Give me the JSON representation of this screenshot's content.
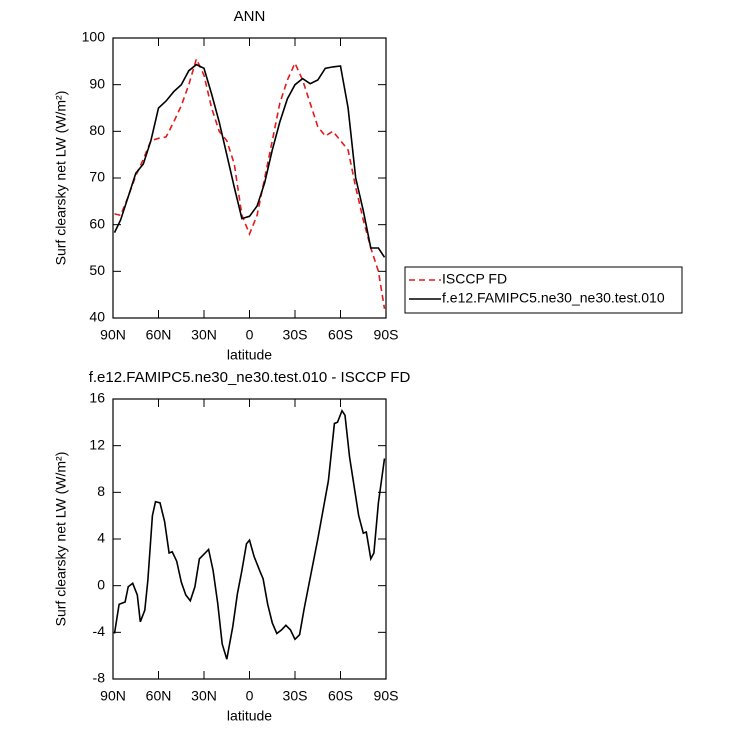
{
  "chart_data": [
    {
      "type": "line",
      "title": "ANN",
      "x_label": "latitude",
      "y_label": "Surf clearsky net LW (W/m²)",
      "x": [
        89,
        85,
        80,
        75,
        70,
        65,
        60,
        55,
        50,
        45,
        40,
        35,
        30,
        25,
        20,
        15,
        10,
        5,
        0,
        -5,
        -10,
        -15,
        -20,
        -25,
        -30,
        -35,
        -40,
        -45,
        -50,
        -55,
        -60,
        -65,
        -70,
        -75,
        -80,
        -85,
        -89
      ],
      "series": [
        {
          "name": "ISCCP FD",
          "color": "#e31a1c",
          "dash": true,
          "values": [
            62.3,
            62,
            66,
            70.5,
            74,
            78,
            78.5,
            78.8,
            82,
            85.5,
            90,
            95.5,
            92,
            85,
            80,
            78,
            73,
            62,
            58,
            62,
            70,
            78,
            86,
            91,
            94.6,
            91,
            86,
            81,
            79,
            80,
            78,
            76,
            68,
            61,
            55,
            50,
            42
          ]
        },
        {
          "name": "f.e12.FAMIPC5.ne30_ne30.test.010",
          "color": "#000000",
          "dash": false,
          "values": [
            58.3,
            61,
            66,
            71,
            73,
            78,
            85,
            86.5,
            88.5,
            90,
            93,
            94.3,
            93.5,
            88,
            82,
            75,
            68,
            61.3,
            61.8,
            64,
            69,
            76,
            82,
            87,
            90,
            91.3,
            90.2,
            91,
            93.5,
            93.8,
            94,
            85,
            70,
            63,
            55,
            55,
            53
          ]
        }
      ],
      "xlim": [
        90,
        -90
      ],
      "xticks": [
        {
          "value": 90,
          "label": "90N"
        },
        {
          "value": 60,
          "label": "60N"
        },
        {
          "value": 30,
          "label": "30N"
        },
        0,
        {
          "value": -30,
          "label": "30S"
        },
        {
          "value": -60,
          "label": "60S"
        },
        {
          "value": -90,
          "label": "90S"
        }
      ],
      "ylim": [
        40,
        100
      ],
      "yticks": [
        40,
        50,
        60,
        70,
        80,
        90,
        100
      ],
      "legend": "outside-right"
    },
    {
      "type": "line",
      "title": "f.e12.FAMIPC5.ne30_ne30.test.010 - ISCCP FD",
      "x_label": "latitude",
      "y_label": "Surf clearsky net LW (W/m²)",
      "x": [
        89,
        86,
        82,
        80,
        77,
        74,
        72,
        69,
        67,
        64,
        62,
        59,
        56,
        53,
        51,
        48,
        45,
        42,
        39,
        36,
        33,
        30,
        27,
        24,
        21,
        18,
        15,
        11,
        8,
        5,
        2,
        0,
        -3,
        -7,
        -9,
        -12,
        -15,
        -18,
        -21,
        -24,
        -27,
        -30,
        -33,
        -36,
        -45,
        -52,
        -56,
        -58,
        -61,
        -63,
        -66,
        -72,
        -75,
        -77,
        -80,
        -82,
        -85,
        -89
      ],
      "values": [
        -4.1,
        -1.6,
        -1.4,
        -0.1,
        0.2,
        -0.8,
        -3.1,
        -2.1,
        0.5,
        6,
        7.2,
        7.1,
        5.5,
        2.8,
        2.9,
        2.1,
        0.3,
        -0.8,
        -1.3,
        -0.1,
        2.3,
        2.7,
        3.1,
        1.3,
        -1.5,
        -5,
        -6.3,
        -3.5,
        -0.7,
        1.3,
        3.6,
        3.9,
        2.5,
        1.2,
        0.6,
        -1.6,
        -3.2,
        -4.1,
        -3.8,
        -3.4,
        -3.8,
        -4.6,
        -4.2,
        -2,
        4,
        9,
        13.9,
        14,
        15,
        14.6,
        11,
        6,
        4.5,
        4.6,
        2.3,
        2.8,
        7.1,
        10.9
      ],
      "color": "#000000",
      "xlim": [
        90,
        -90
      ],
      "xticks": [
        {
          "value": 90,
          "label": "90N"
        },
        {
          "value": 60,
          "label": "60N"
        },
        {
          "value": 30,
          "label": "30N"
        },
        0,
        {
          "value": -30,
          "label": "30S"
        },
        {
          "value": -60,
          "label": "60S"
        },
        {
          "value": -90,
          "label": "90S"
        }
      ],
      "ylim": [
        -8,
        16
      ],
      "yticks": [
        -8,
        -4,
        0,
        4,
        8,
        12,
        16
      ]
    }
  ]
}
